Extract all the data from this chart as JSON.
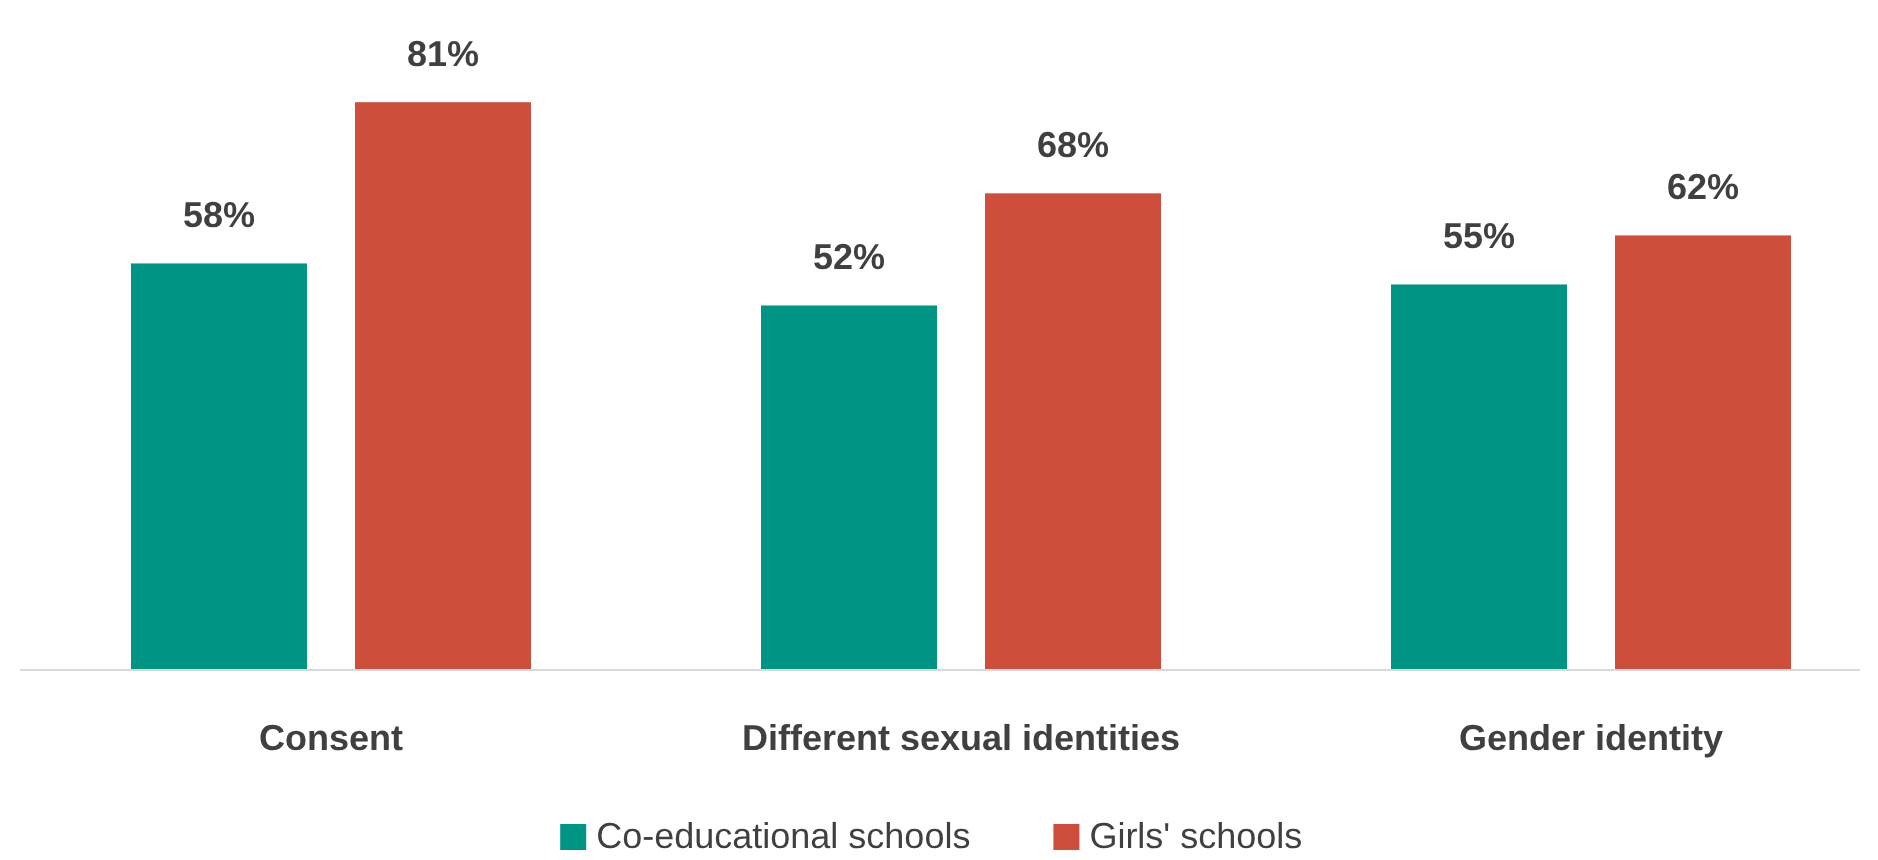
{
  "chart_data": {
    "type": "bar",
    "categories": [
      "Consent",
      "Different sexual identities",
      "Gender identity"
    ],
    "series": [
      {
        "name": "Co-educational schools",
        "color": "#009485",
        "values": [
          58,
          52,
          55
        ],
        "value_labels": [
          "58%",
          "52%",
          "55%"
        ]
      },
      {
        "name": "Girls' schools",
        "color": "#cc4e3b",
        "values": [
          81,
          68,
          62
        ],
        "value_labels": [
          "81%",
          "68%",
          "62%"
        ]
      }
    ],
    "legend": "bottom"
  }
}
